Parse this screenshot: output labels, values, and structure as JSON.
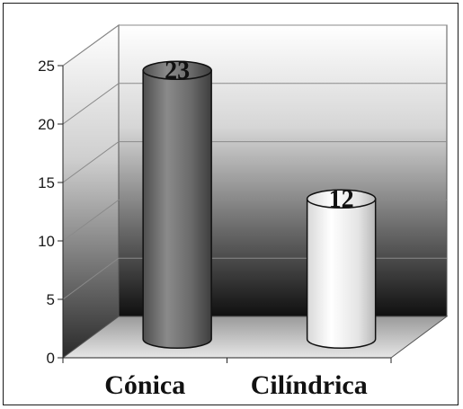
{
  "chart_data": {
    "type": "bar",
    "style": "3d-cylinder",
    "categories": [
      "Cónica",
      "Cilíndrica"
    ],
    "values": [
      23,
      12
    ],
    "data_labels": [
      "23",
      "12"
    ],
    "ylim": [
      0,
      25
    ],
    "yticks": [
      "0",
      "5",
      "10",
      "15",
      "20",
      "25"
    ],
    "title": "",
    "xlabel": "",
    "ylabel": "",
    "grid": true,
    "legend": "none",
    "colors": {
      "bar_1": "#6e6e6e",
      "bar_2": "#f2f2f2",
      "wall_top": "#ffffff",
      "wall_bottom": "#0f0f0f",
      "floor": "#bdbdbd"
    }
  }
}
